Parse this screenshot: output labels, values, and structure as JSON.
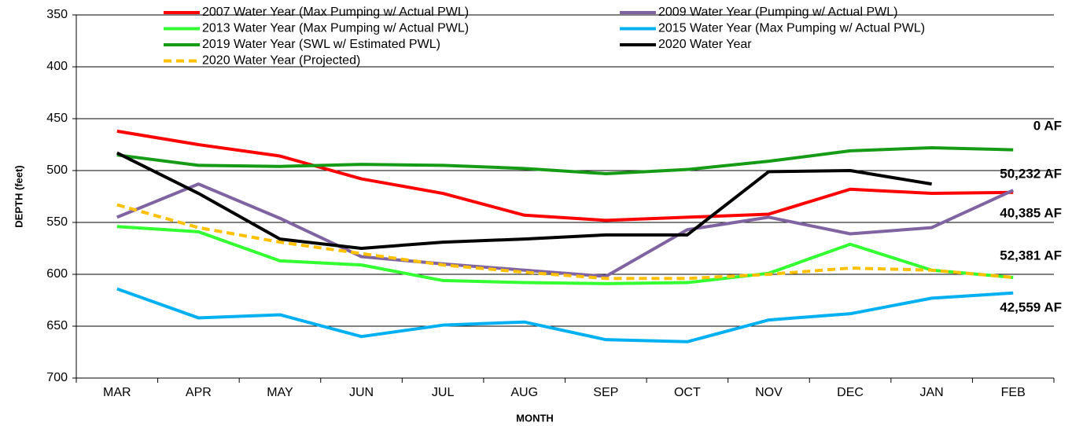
{
  "chart_data": {
    "type": "line",
    "x_label": "MONTH",
    "y_label": "DEPTH (feet)",
    "categories": [
      "MAR",
      "APR",
      "MAY",
      "JUN",
      "JUL",
      "AUG",
      "SEP",
      "OCT",
      "NOV",
      "DEC",
      "JAN",
      "FEB"
    ],
    "series": [
      {
        "name": "2007 Water Year (Max Pumping w/ Actual PWL)",
        "color": "#ff0000",
        "values": [
          462,
          475,
          486,
          508,
          522,
          543,
          548,
          545,
          542,
          518,
          522,
          521
        ]
      },
      {
        "name": "2009 Water Year (Pumping w/ Actual PWL)",
        "color": "#8064a2",
        "values": [
          545,
          513,
          546,
          583,
          590,
          596,
          602,
          557,
          545,
          561,
          555,
          519
        ]
      },
      {
        "name": "2013 Water Year (Max Pumping w/ Actual PWL)",
        "color": "#33ff33",
        "values": [
          554,
          559,
          587,
          591,
          606,
          608,
          609,
          608,
          599,
          571,
          596,
          603
        ]
      },
      {
        "name": "2015 Water Year (Max Pumping w/ Actual PWL)",
        "color": "#00b0f0",
        "values": [
          614,
          642,
          639,
          660,
          649,
          646,
          663,
          665,
          644,
          638,
          623,
          618
        ]
      },
      {
        "name": "2019 Water Year (SWL w/ Estimated PWL)",
        "color": "#169b16",
        "values": [
          485,
          495,
          496,
          494,
          495,
          498,
          503,
          499,
          491,
          481,
          478,
          480
        ]
      },
      {
        "name": "2020 Water Year",
        "color": "#000000",
        "values": [
          483,
          522,
          566,
          575,
          569,
          566,
          562,
          562,
          501,
          500,
          513,
          null
        ]
      },
      {
        "name": "2020 Water Year (Projected)",
        "color": "#ffc000",
        "dashed": true,
        "values": [
          533,
          555,
          569,
          580,
          591,
          598,
          604,
          604,
          600,
          594,
          596,
          603
        ]
      }
    ],
    "ylim": [
      350,
      700
    ],
    "y_inverted": true,
    "yticks": [
      350,
      400,
      450,
      500,
      550,
      600,
      650,
      700
    ],
    "grid": true,
    "legend": "top",
    "annotations": [
      {
        "text": "0 AF",
        "color": "#4caf50"
      },
      {
        "text": "50,232 AF",
        "color": "#ff0000"
      },
      {
        "text": "40,385 AF",
        "color": "#7f1f7f"
      },
      {
        "text": "52,381 AF",
        "color": "#33ff33"
      },
      {
        "text": "42,559 AF",
        "color": "#00b0f0"
      }
    ]
  }
}
